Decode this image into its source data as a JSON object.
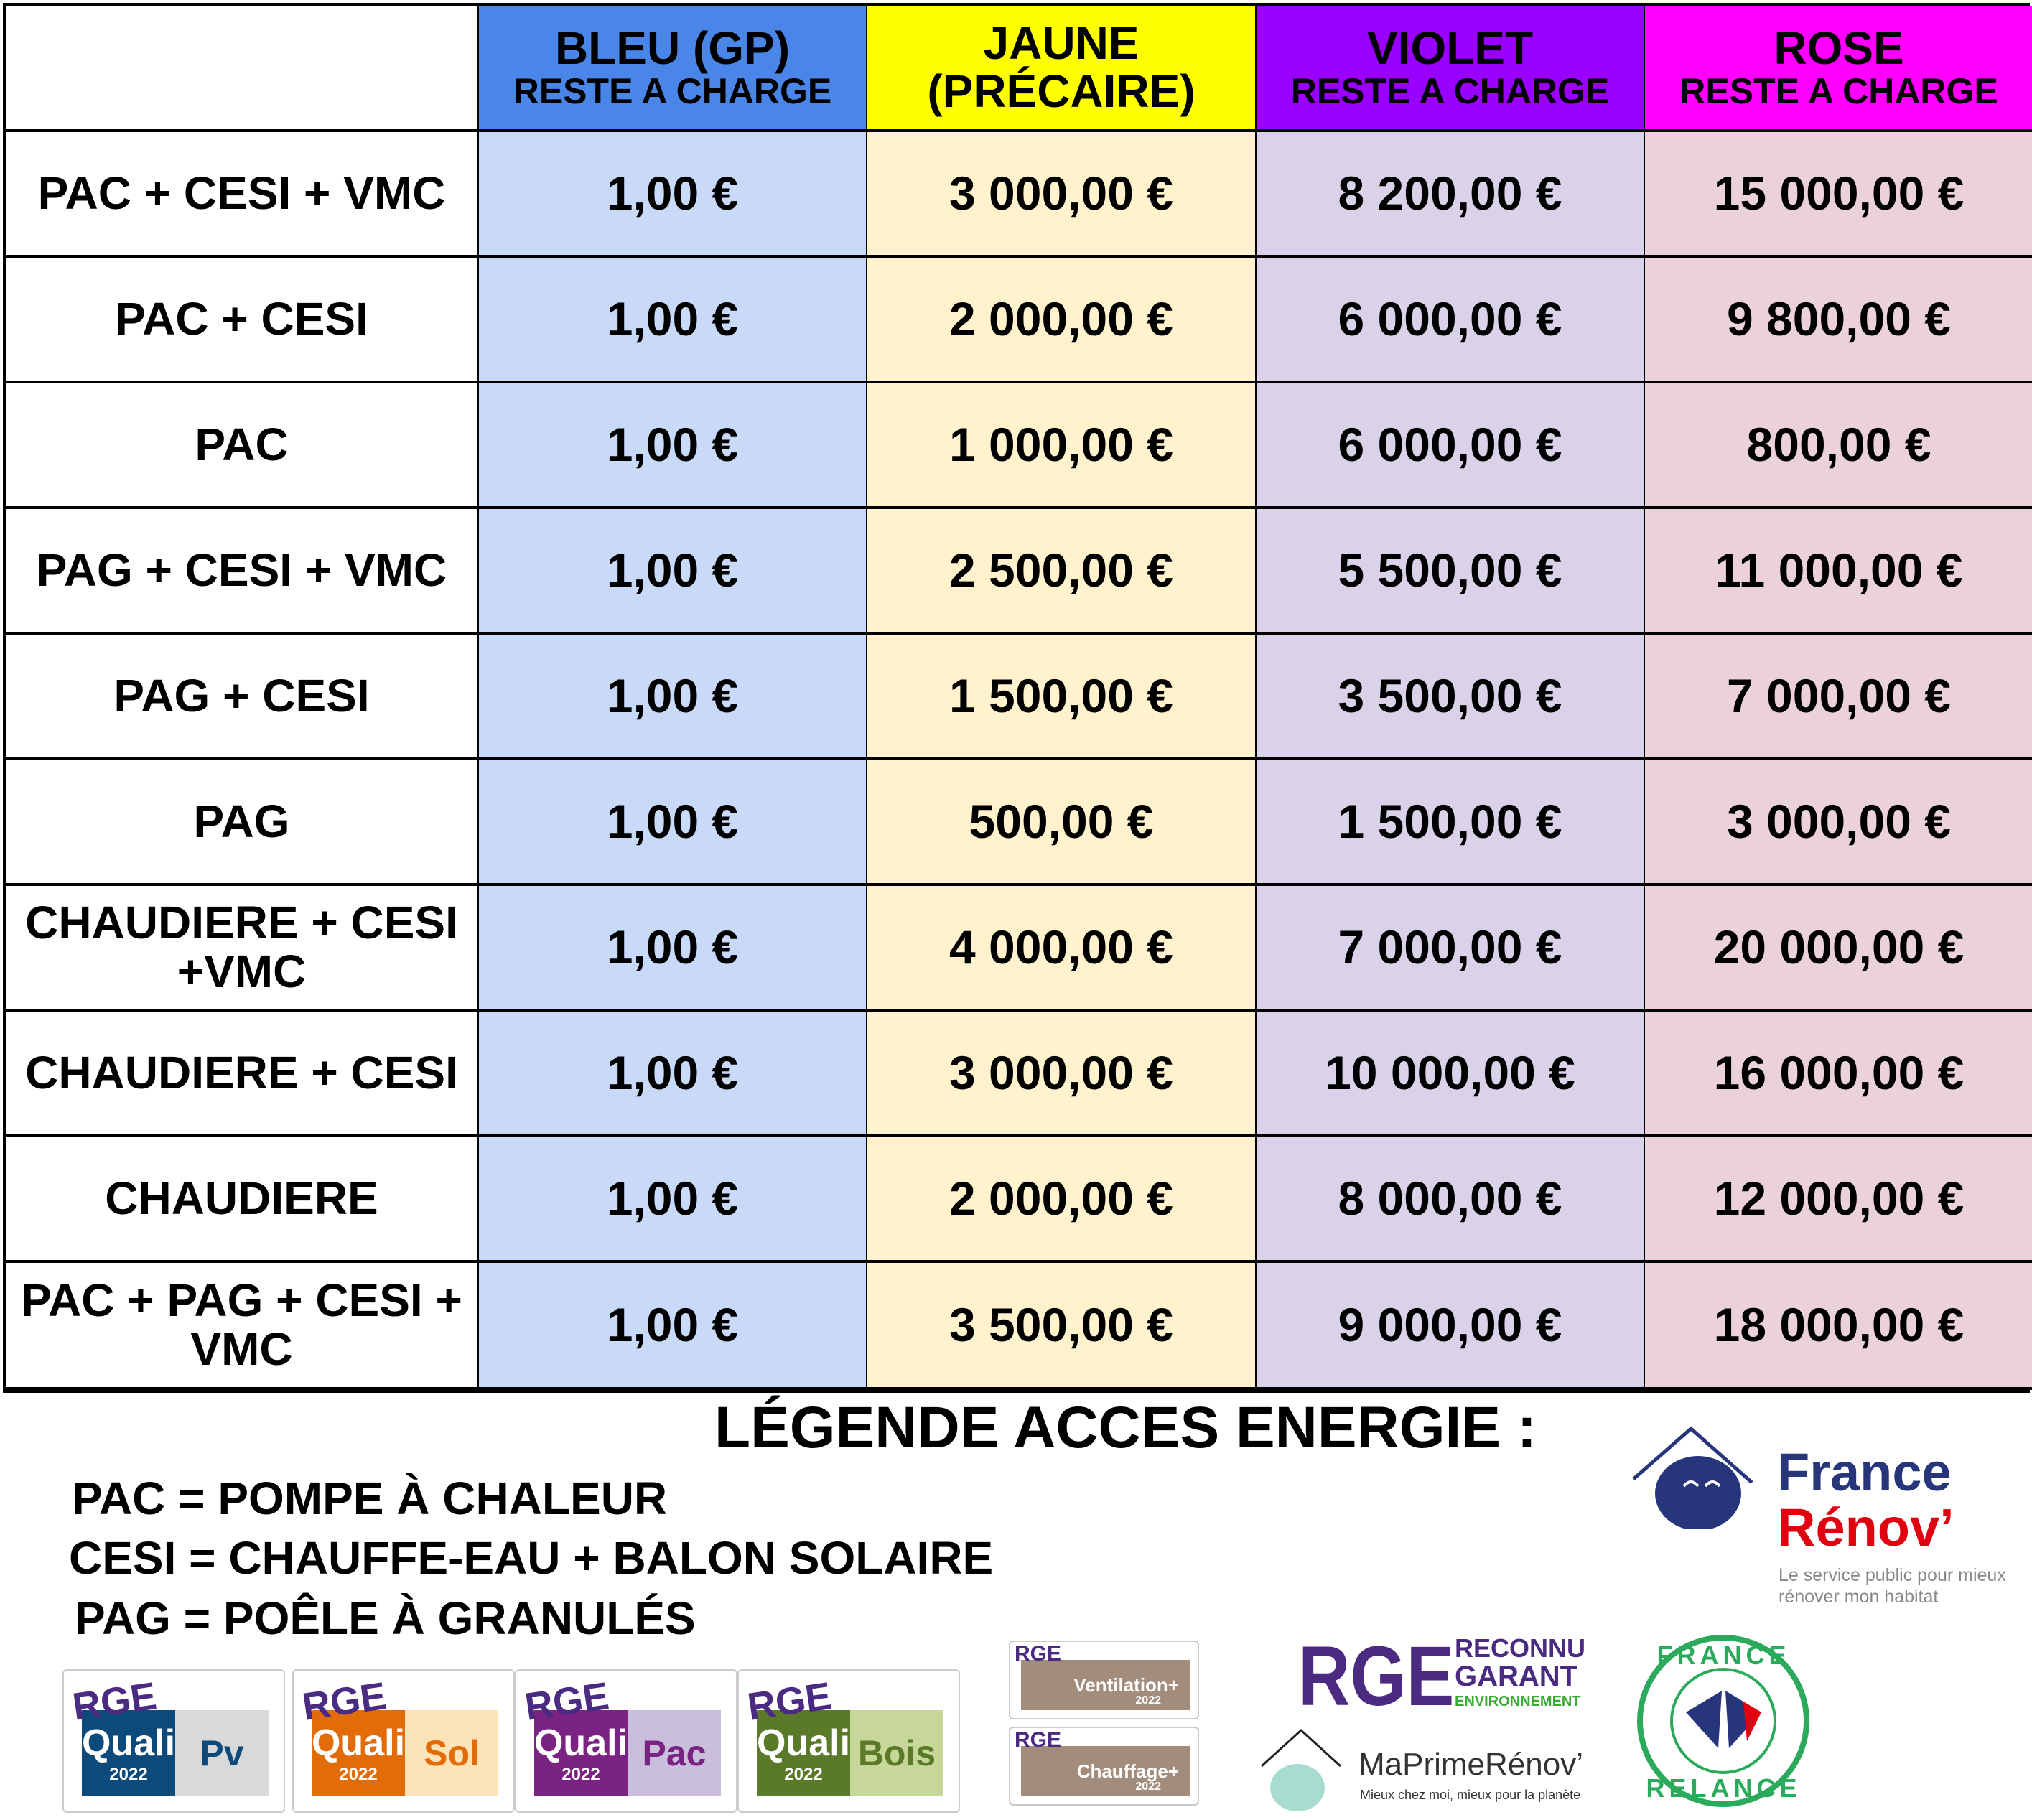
{
  "table": {
    "headers": [
      {
        "title": "",
        "sub": ""
      },
      {
        "title": "BLEU (GP)",
        "sub": "RESTE A CHARGE",
        "color": "#4a86e8"
      },
      {
        "title": "JAUNE",
        "sub": "(PRÉCAIRE)",
        "color": "#ffff00"
      },
      {
        "title": "VIOLET",
        "sub": "RESTE A CHARGE",
        "color": "#9900ff"
      },
      {
        "title": "ROSE",
        "sub": "RESTE A CHARGE",
        "color": "#ff00ff"
      }
    ],
    "rows": [
      {
        "label": "PAC + CESI + VMC",
        "values": [
          "1,00 €",
          "3 000,00 €",
          "8 200,00 €",
          "15 000,00 €"
        ]
      },
      {
        "label": "PAC + CESI",
        "values": [
          "1,00 €",
          "2 000,00 €",
          "6 000,00 €",
          "9 800,00 €"
        ]
      },
      {
        "label": "PAC",
        "values": [
          "1,00 €",
          "1 000,00 €",
          "6 000,00 €",
          "800,00 €"
        ]
      },
      {
        "label": "PAG + CESI + VMC",
        "values": [
          "1,00 €",
          "2 500,00 €",
          "5 500,00 €",
          "11 000,00 €"
        ]
      },
      {
        "label": "PAG + CESI",
        "values": [
          "1,00 €",
          "1 500,00 €",
          "3 500,00 €",
          "7 000,00 €"
        ]
      },
      {
        "label": "PAG",
        "values": [
          "1,00 €",
          "500,00 €",
          "1 500,00 €",
          "3 000,00 €"
        ]
      },
      {
        "label": "CHAUDIERE + CESI +VMC",
        "values": [
          "1,00 €",
          "4 000,00 €",
          "7 000,00 €",
          "20 000,00 €"
        ]
      },
      {
        "label": "CHAUDIERE + CESI",
        "values": [
          "1,00 €",
          "3 000,00 €",
          "10 000,00 €",
          "16 000,00 €"
        ]
      },
      {
        "label": "CHAUDIERE",
        "values": [
          "1,00 €",
          "2 000,00 €",
          "8 000,00 €",
          "12 000,00 €"
        ]
      },
      {
        "label": "PAC + PAG + CESI + VMC",
        "values": [
          "1,00 €",
          "3 500,00 €",
          "9 000,00 €",
          "18 000,00 €"
        ]
      }
    ]
  },
  "legend": {
    "title": "LÉGENDE ACCES ENERGIE :",
    "lines": [
      "PAC = POMPE À CHALEUR",
      "CESI = CHAUFFE-EAU + BALON SOLAIRE",
      "PAG = POÊLE À GRANULÉS"
    ]
  },
  "logos": {
    "france_renov": {
      "line1": "France",
      "line2": "Rénov’",
      "tagline1": "Le service public pour mieux",
      "tagline2": "rénover mon habitat"
    },
    "quali": [
      {
        "rge": "RGE",
        "left": "Quali",
        "right": "Pv",
        "year": "2022",
        "color": "#0b4a7a",
        "light": "#d9d9d9",
        "rc": "#0b4a7a"
      },
      {
        "rge": "RGE",
        "left": "Quali",
        "right": "Sol",
        "year": "2022",
        "color": "#e36c0a",
        "light": "#fde3b8",
        "rc": "#e36c0a"
      },
      {
        "rge": "RGE",
        "left": "Quali",
        "right": "Pac",
        "year": "2022",
        "color": "#7b2382",
        "light": "#c9bfdc",
        "rc": "#7b2382"
      },
      {
        "rge": "RGE",
        "left": "Quali",
        "right": "Bois",
        "year": "2022",
        "color": "#5a7a2a",
        "light": "#c7d79a",
        "rc": "#5a7a2a"
      }
    ],
    "small": [
      {
        "rge": "RGE",
        "label": "Ventilation+",
        "year": "2022"
      },
      {
        "rge": "RGE",
        "label": "Chauffage+",
        "year": "2022"
      }
    ],
    "rge_garant": {
      "big": "RGE",
      "l1": "RECONNU",
      "l2": "GARANT",
      "l3": "ENVIRONNEMENT"
    },
    "maprimerenov": {
      "name": "MaPrimeRénov’",
      "tagline": "Mieux chez moi, mieux pour la planète"
    },
    "france_relance": {
      "top": "FRANCE",
      "bottom": "RELANCE"
    }
  }
}
